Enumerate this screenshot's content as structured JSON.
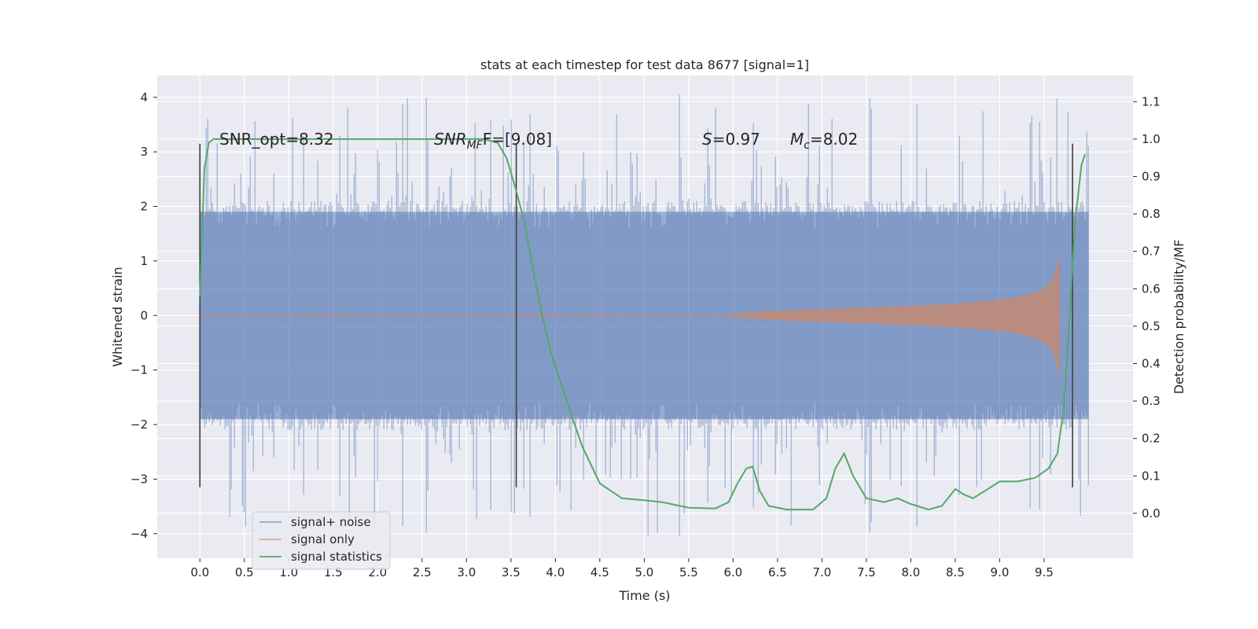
{
  "chart_data": {
    "type": "line",
    "title": "stats at each timestep for test data 8677 [signal=1]",
    "xlabel": "Time (s)",
    "ylabel": "Whitened strain",
    "y2label": "Detection probability/MF",
    "xlim": [
      -0.48,
      10.5
    ],
    "ylim": [
      -4.45,
      4.4
    ],
    "y2lim": [
      -0.12,
      1.17
    ],
    "x_ticks": [
      0.0,
      0.5,
      1.0,
      1.5,
      2.0,
      2.5,
      3.0,
      3.5,
      4.0,
      4.5,
      5.0,
      5.5,
      6.0,
      6.5,
      7.0,
      7.5,
      8.0,
      8.5,
      9.0,
      9.5
    ],
    "x_tick_labels": [
      "0.0",
      "0.5",
      "1.0",
      "1.5",
      "2.0",
      "2.5",
      "3.0",
      "3.5",
      "4.0",
      "4.5",
      "5.0",
      "5.5",
      "6.0",
      "6.5",
      "7.0",
      "7.5",
      "8.0",
      "8.5",
      "9.0",
      "9.5"
    ],
    "y_ticks": [
      4,
      3,
      2,
      1,
      0,
      -1,
      -2,
      -3,
      -4
    ],
    "y_tick_labels": [
      "4",
      "3",
      "2",
      "1",
      "0",
      "−1",
      "−2",
      "−3",
      "−4"
    ],
    "y2_ticks": [
      1.1,
      1.0,
      0.9,
      0.8,
      0.7,
      0.6,
      0.5,
      0.4,
      0.3,
      0.2,
      0.1,
      0.0
    ],
    "y2_tick_labels": [
      "1.1",
      "1.0",
      "0.9",
      "0.8",
      "0.7",
      "0.6",
      "0.5",
      "0.4",
      "0.3",
      "0.2",
      "0.1",
      "0.0"
    ],
    "grid": true,
    "legend_position": "lower-left",
    "legend": [
      {
        "label": "signal+ noise",
        "color": "#4c72b0"
      },
      {
        "label": "signal only",
        "color": "#dd8452"
      },
      {
        "label": "signal statistics",
        "color": "#55a868"
      }
    ],
    "annotations": {
      "snr_opt": "SNR_opt=8.32",
      "snr_mf_base": "SNR",
      "snr_mf_sub": "MF",
      "snr_mf_rest": "F=[9.08]",
      "s_italic": "S",
      "s_rest": "=0.97",
      "mc_base": "M",
      "mc_sub": "c",
      "mc_rest": "=8.02"
    },
    "vertical_lines_x": [
      0.0,
      3.56,
      9.82
    ],
    "vertical_lines_ylim": [
      -3.15,
      3.15
    ],
    "noise": {
      "t_start": 0.0,
      "t_end": 10.0,
      "typical_amplitude": 1.9,
      "max_amplitude": 4.05
    },
    "signal_envelope": {
      "t": [
        5.8,
        6.5,
        7.0,
        7.5,
        8.0,
        8.5,
        9.0,
        9.3,
        9.5,
        9.6,
        9.67
      ],
      "amplitude": [
        0.0,
        0.08,
        0.11,
        0.14,
        0.17,
        0.21,
        0.28,
        0.36,
        0.48,
        0.65,
        1.05
      ]
    },
    "series": [
      {
        "name": "signal statistics",
        "axis": "right",
        "x": [
          0.0,
          0.05,
          0.1,
          0.15,
          0.3,
          0.6,
          1.0,
          2.0,
          3.0,
          3.2,
          3.35,
          3.45,
          3.55,
          3.65,
          3.75,
          3.85,
          3.95,
          4.1,
          4.3,
          4.5,
          4.75,
          5.0,
          5.2,
          5.5,
          5.8,
          5.95,
          6.05,
          6.15,
          6.22,
          6.3,
          6.4,
          6.6,
          6.9,
          7.05,
          7.15,
          7.25,
          7.35,
          7.5,
          7.7,
          7.85,
          8.0,
          8.2,
          8.35,
          8.5,
          8.6,
          8.7,
          8.8,
          9.0,
          9.2,
          9.4,
          9.55,
          9.65,
          9.72,
          9.78,
          9.85,
          9.92,
          9.96
        ],
        "y": [
          0.58,
          0.92,
          0.99,
          1.0,
          1.0,
          1.0,
          1.0,
          1.0,
          1.0,
          1.0,
          0.99,
          0.95,
          0.87,
          0.78,
          0.65,
          0.53,
          0.43,
          0.32,
          0.18,
          0.08,
          0.04,
          0.035,
          0.03,
          0.015,
          0.013,
          0.03,
          0.08,
          0.12,
          0.125,
          0.06,
          0.02,
          0.01,
          0.01,
          0.04,
          0.12,
          0.16,
          0.1,
          0.04,
          0.03,
          0.04,
          0.025,
          0.01,
          0.02,
          0.065,
          0.05,
          0.04,
          0.055,
          0.085,
          0.085,
          0.095,
          0.12,
          0.16,
          0.28,
          0.5,
          0.78,
          0.93,
          0.96
        ]
      }
    ]
  }
}
